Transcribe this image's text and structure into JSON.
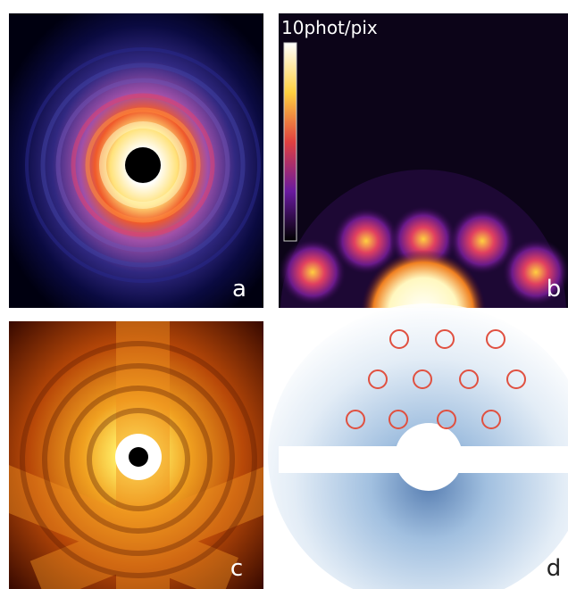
{
  "colorbar": {
    "label": "10phot/pix"
  },
  "panels": [
    {
      "label": "a"
    },
    {
      "label": "b"
    },
    {
      "label": "c"
    },
    {
      "label": "d"
    }
  ]
}
